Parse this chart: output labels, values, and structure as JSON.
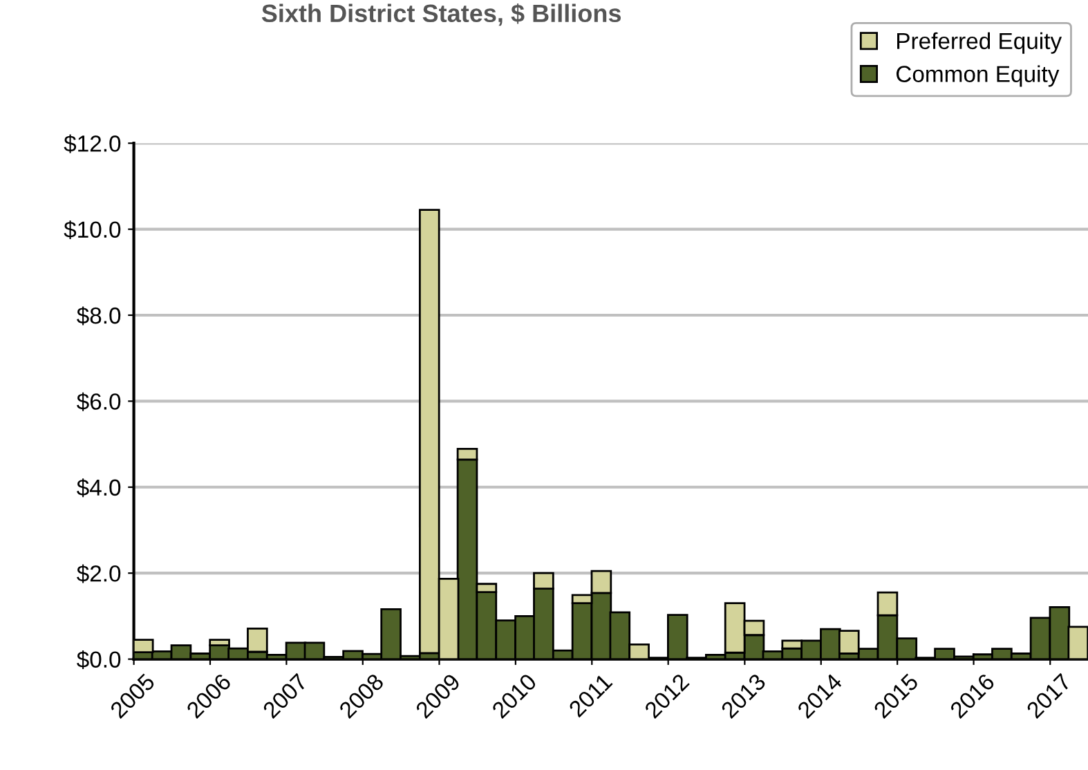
{
  "chart_data": {
    "type": "bar",
    "title": "Sixth District States, $ Billions",
    "stacked": true,
    "x": [
      "2005-02-15",
      "2005-05-15",
      "2005-08-15",
      "2005-11-15",
      "2006-02-15",
      "2006-05-15",
      "2006-08-15",
      "2006-11-15",
      "2007-02-15",
      "2007-05-15",
      "2007-08-15",
      "2007-11-15",
      "2008-02-15",
      "2008-05-15",
      "2008-08-15",
      "2008-11-15",
      "2009-02-15",
      "2009-05-15",
      "2009-08-15",
      "2009-11-15",
      "2010-02-15",
      "2010-05-15",
      "2010-08-15",
      "2010-11-15",
      "2011-02-15",
      "2011-05-15",
      "2011-08-15",
      "2011-11-15",
      "2012-02-15",
      "2012-05-15",
      "2012-08-15",
      "2012-11-15",
      "2013-02-15",
      "2013-05-15",
      "2013-08-15",
      "2013-11-15",
      "2014-02-15",
      "2014-05-15",
      "2014-08-15",
      "2014-11-15",
      "2015-02-15",
      "2015-05-15",
      "2015-08-15",
      "2015-11-15",
      "2016-02-15",
      "2016-05-15",
      "2016-08-15",
      "2016-11-15",
      "2017-02-15",
      "2017-05-15"
    ],
    "series": [
      {
        "name": "Common Equity",
        "color": "#4f6228",
        "values": [
          0.16,
          0.18,
          0.32,
          0.13,
          0.32,
          0.25,
          0.17,
          0.1,
          0.38,
          0.38,
          0.05,
          0.19,
          0.12,
          1.16,
          0.07,
          0.14,
          null,
          4.64,
          1.56,
          0.9,
          1.0,
          1.64,
          0.2,
          1.3,
          1.54,
          1.09,
          null,
          0.03,
          1.03,
          0.03,
          0.1,
          0.15,
          0.56,
          0.18,
          0.25,
          0.43,
          0.7,
          0.13,
          0.24,
          1.02,
          0.48,
          0.03,
          0.24,
          0.06,
          0.11,
          0.24,
          0.13,
          0.96,
          1.21,
          null
        ]
      },
      {
        "name": "Preferred Equity",
        "color": "#d3d39a",
        "values": [
          0.29,
          null,
          null,
          null,
          0.13,
          null,
          0.54,
          null,
          null,
          null,
          null,
          null,
          null,
          null,
          null,
          10.31,
          1.87,
          0.25,
          0.19,
          null,
          null,
          0.36,
          null,
          0.19,
          0.51,
          null,
          0.34,
          null,
          null,
          null,
          null,
          1.15,
          0.33,
          null,
          0.18,
          null,
          null,
          0.53,
          null,
          0.53,
          null,
          null,
          null,
          null,
          null,
          null,
          null,
          null,
          null,
          0.75
        ]
      }
    ],
    "xlim": [
      "2005",
      "2017-07"
    ],
    "xticks": [
      "2005",
      "2006",
      "2007",
      "2008",
      "2009",
      "2010",
      "2011",
      "2012",
      "2013",
      "2014",
      "2015",
      "2016",
      "2017"
    ],
    "ylim": [
      0,
      12
    ],
    "yticks": [
      {
        "value": 0,
        "label": "$0.0"
      },
      {
        "value": 2,
        "label": "$2.0"
      },
      {
        "value": 4,
        "label": "$4.0"
      },
      {
        "value": 6,
        "label": "$6.0"
      },
      {
        "value": 8,
        "label": "$8.0"
      },
      {
        "value": 10,
        "label": "$10.0"
      },
      {
        "value": 12,
        "label": "$12.0"
      }
    ],
    "grid": "y",
    "legend": "top right"
  }
}
